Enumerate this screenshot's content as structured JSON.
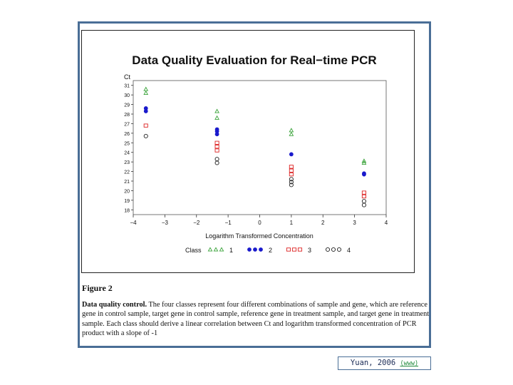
{
  "figure": {
    "label": "Figure 2",
    "caption_title": "Data quality control.",
    "caption_body": "The four classes represent four different combinations of sample and gene, which are reference gene in control sample, target gene in control sample, reference gene in treatment sample, and target gene in treatment sample. Each class should derive a linear correlation between Ct and logarithm transformed concentration of PCR product with a slope of -1"
  },
  "citation": {
    "text": "Yuan, 2006",
    "link_text": "(www)"
  },
  "chart_data": {
    "type": "scatter",
    "title": "Data Quality Evaluation for Real−time PCR",
    "xlabel": "Logarithm Transformed Concentration",
    "ylabel": "Ct",
    "xlim": [
      -4,
      4
    ],
    "ylim": [
      17.5,
      31.5
    ],
    "x_ticks": [
      -4,
      -3,
      -2,
      -1,
      0,
      1,
      2,
      3,
      4
    ],
    "x_tick_labels": [
      "−4",
      "−3",
      "−2",
      "−1",
      "0",
      "1",
      "2",
      "3",
      "4"
    ],
    "y_ticks": [
      18,
      19,
      20,
      21,
      22,
      23,
      24,
      25,
      26,
      27,
      28,
      29,
      30,
      31
    ],
    "y_tick_labels": [
      "18",
      "19",
      "20",
      "21",
      "22",
      "23",
      "24",
      "25",
      "26",
      "27",
      "28",
      "29",
      "30",
      "31"
    ],
    "grid": false,
    "legend_position": "bottom",
    "legend_title": "Class",
    "series": [
      {
        "name": "1",
        "marker": "triangle",
        "color": "#3aa33a",
        "points": [
          [
            -3.6,
            30.6
          ],
          [
            -3.6,
            30.2
          ],
          [
            -1.35,
            28.3
          ],
          [
            -1.35,
            27.6
          ],
          [
            1.0,
            26.3
          ],
          [
            1.0,
            25.9
          ],
          [
            3.3,
            23.1
          ],
          [
            3.3,
            22.9
          ]
        ]
      },
      {
        "name": "2",
        "marker": "dot",
        "color": "#1a1acc",
        "points": [
          [
            -3.6,
            28.6
          ],
          [
            -3.6,
            28.3
          ],
          [
            -1.35,
            26.4
          ],
          [
            -1.35,
            26.2
          ],
          [
            -1.35,
            25.9
          ],
          [
            1.0,
            23.8
          ],
          [
            3.3,
            21.8
          ],
          [
            3.3,
            21.7
          ]
        ]
      },
      {
        "name": "3",
        "marker": "square",
        "color": "#dd2222",
        "points": [
          [
            -3.6,
            26.8
          ],
          [
            -1.35,
            25.0
          ],
          [
            -1.35,
            24.6
          ],
          [
            -1.35,
            24.2
          ],
          [
            1.0,
            22.5
          ],
          [
            1.0,
            22.1
          ],
          [
            1.0,
            21.7
          ],
          [
            3.3,
            19.8
          ],
          [
            3.3,
            19.4
          ]
        ]
      },
      {
        "name": "4",
        "marker": "circle",
        "color": "#222222",
        "points": [
          [
            -3.6,
            25.7
          ],
          [
            -1.35,
            23.3
          ],
          [
            -1.35,
            22.9
          ],
          [
            1.0,
            21.2
          ],
          [
            1.0,
            20.9
          ],
          [
            1.0,
            20.6
          ],
          [
            3.3,
            18.9
          ],
          [
            3.3,
            18.5
          ]
        ]
      }
    ]
  }
}
